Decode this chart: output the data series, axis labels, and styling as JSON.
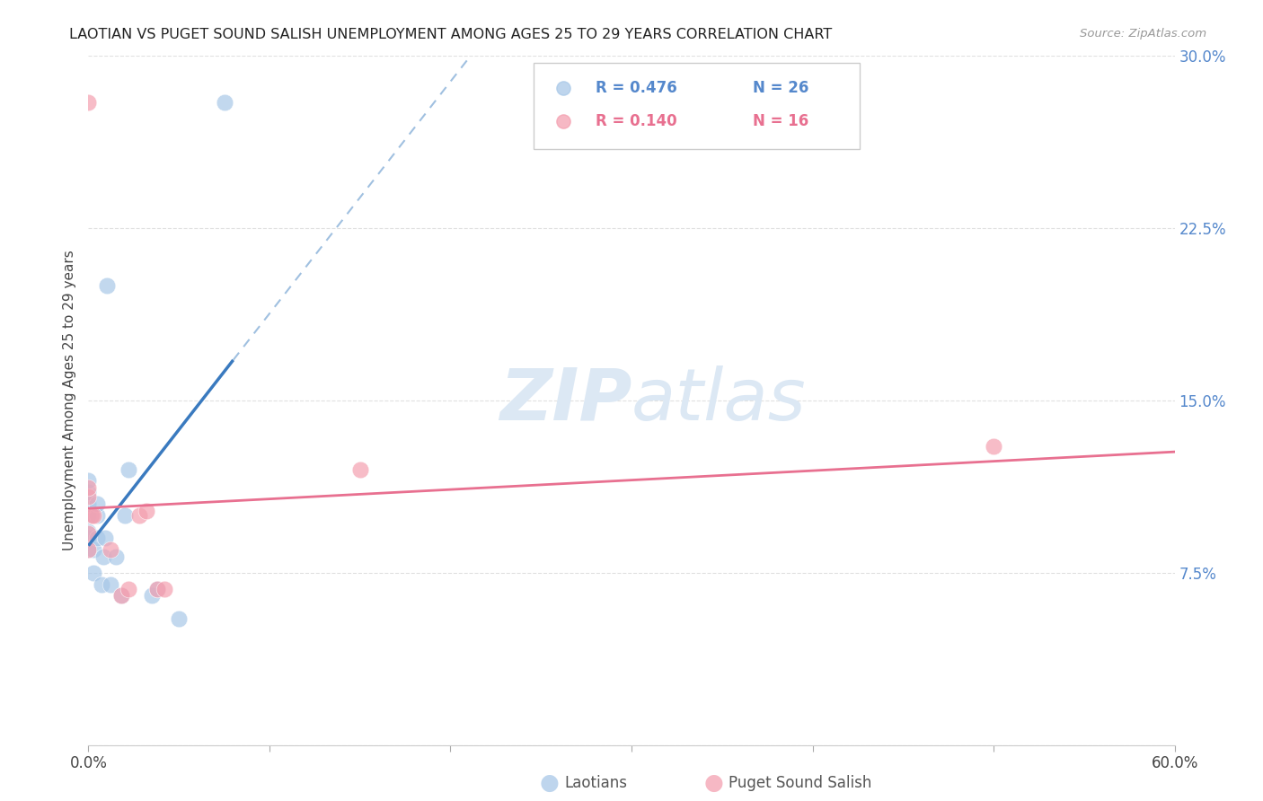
{
  "title": "LAOTIAN VS PUGET SOUND SALISH UNEMPLOYMENT AMONG AGES 25 TO 29 YEARS CORRELATION CHART",
  "source": "Source: ZipAtlas.com",
  "ylabel": "Unemployment Among Ages 25 to 29 years",
  "xlim": [
    0.0,
    0.6
  ],
  "ylim": [
    0.0,
    0.3
  ],
  "laotian_R": 0.476,
  "laotian_N": 26,
  "puget_R": 0.14,
  "puget_N": 16,
  "laotian_color": "#a8c8e8",
  "puget_color": "#f4a0b0",
  "laotian_line_color": "#3a7abf",
  "laotian_dash_color": "#a0c0e0",
  "puget_line_color": "#e87090",
  "watermark_color": "#dce8f4",
  "right_ytick_color": "#5588cc",
  "laotian_x": [
    0.0,
    0.0,
    0.0,
    0.0,
    0.0,
    0.0,
    0.0,
    0.0,
    0.003,
    0.003,
    0.005,
    0.005,
    0.005,
    0.007,
    0.008,
    0.009,
    0.01,
    0.012,
    0.015,
    0.018,
    0.02,
    0.022,
    0.035,
    0.038,
    0.05,
    0.075
  ],
  "laotian_y": [
    0.085,
    0.09,
    0.093,
    0.1,
    0.1,
    0.105,
    0.11,
    0.115,
    0.075,
    0.085,
    0.09,
    0.1,
    0.105,
    0.07,
    0.082,
    0.09,
    0.2,
    0.07,
    0.082,
    0.065,
    0.1,
    0.12,
    0.065,
    0.068,
    0.055,
    0.28
  ],
  "puget_x": [
    0.0,
    0.0,
    0.0,
    0.002,
    0.003,
    0.012,
    0.018,
    0.022,
    0.028,
    0.032,
    0.038,
    0.042,
    0.15,
    0.5,
    0.0,
    0.0
  ],
  "puget_y": [
    0.085,
    0.092,
    0.28,
    0.1,
    0.1,
    0.085,
    0.065,
    0.068,
    0.1,
    0.102,
    0.068,
    0.068,
    0.12,
    0.13,
    0.108,
    0.112
  ],
  "background_color": "#ffffff",
  "grid_color": "#e0e0e0"
}
